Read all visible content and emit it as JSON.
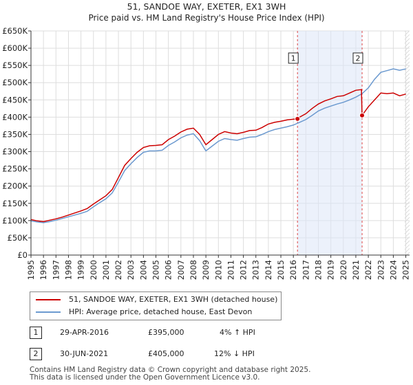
{
  "chart_data": {
    "type": "line",
    "title": "51, SANDOE WAY, EXETER, EX1 3WH",
    "subtitle": "Price paid vs. HM Land Registry's House Price Index (HPI)",
    "xlim": [
      1995,
      2025.3
    ],
    "ylim": [
      0,
      650000
    ],
    "xticks": [
      1995,
      1996,
      1997,
      1998,
      1999,
      2000,
      2001,
      2002,
      2003,
      2004,
      2005,
      2006,
      2007,
      2008,
      2009,
      2010,
      2011,
      2012,
      2013,
      2014,
      2015,
      2016,
      2017,
      2018,
      2019,
      2020,
      2021,
      2022,
      2023,
      2024,
      2025
    ],
    "yticks": [
      0,
      50000,
      100000,
      150000,
      200000,
      250000,
      300000,
      350000,
      400000,
      450000,
      500000,
      550000,
      600000,
      650000
    ],
    "ytick_labels": [
      "£0",
      "£50K",
      "£100K",
      "£150K",
      "£200K",
      "£250K",
      "£300K",
      "£350K",
      "£400K",
      "£450K",
      "£500K",
      "£550K",
      "£600K",
      "£650K"
    ],
    "series": [
      {
        "name": "51, SANDOE WAY, EXETER, EX1 3WH (detached house)",
        "color": "#cc0000",
        "x": [
          1995.0,
          1995.5,
          1996.0,
          1996.5,
          1997.0,
          1997.5,
          1998.0,
          1998.5,
          1999.0,
          1999.5,
          2000.0,
          2000.5,
          2001.0,
          2001.5,
          2002.0,
          2002.5,
          2003.0,
          2003.5,
          2004.0,
          2004.5,
          2005.0,
          2005.5,
          2006.0,
          2006.5,
          2007.0,
          2007.5,
          2008.0,
          2008.5,
          2009.0,
          2009.5,
          2010.0,
          2010.5,
          2011.0,
          2011.5,
          2012.0,
          2012.5,
          2013.0,
          2013.5,
          2014.0,
          2014.5,
          2015.0,
          2015.5,
          2016.0,
          2016.33,
          2016.5,
          2017.0,
          2017.5,
          2018.0,
          2018.5,
          2019.0,
          2019.5,
          2020.0,
          2020.5,
          2021.0,
          2021.45,
          2021.5,
          2022.0,
          2022.5,
          2023.0,
          2023.5,
          2024.0,
          2024.5,
          2025.0
        ],
        "y": [
          103000,
          99000,
          97000,
          101000,
          105000,
          110000,
          116000,
          122000,
          128000,
          135000,
          148000,
          160000,
          172000,
          190000,
          225000,
          260000,
          280000,
          298000,
          312000,
          317000,
          318000,
          320000,
          335000,
          345000,
          357000,
          365000,
          368000,
          350000,
          320000,
          335000,
          350000,
          358000,
          354000,
          352000,
          356000,
          361000,
          362000,
          370000,
          380000,
          385000,
          388000,
          392000,
          394000,
          395000,
          400000,
          410000,
          425000,
          438000,
          447000,
          453000,
          460000,
          462000,
          470000,
          478000,
          480000,
          405000,
          430000,
          450000,
          470000,
          468000,
          470000,
          462000,
          467000
        ]
      },
      {
        "name": "HPI: Average price, detached house, East Devon",
        "color": "#6b99cf",
        "x": [
          1995.0,
          1995.5,
          1996.0,
          1996.5,
          1997.0,
          1997.5,
          1998.0,
          1998.5,
          1999.0,
          1999.5,
          2000.0,
          2000.5,
          2001.0,
          2001.5,
          2002.0,
          2002.5,
          2003.0,
          2003.5,
          2004.0,
          2004.5,
          2005.0,
          2005.5,
          2006.0,
          2006.5,
          2007.0,
          2007.5,
          2008.0,
          2008.5,
          2009.0,
          2009.5,
          2010.0,
          2010.5,
          2011.0,
          2011.5,
          2012.0,
          2012.5,
          2013.0,
          2013.5,
          2014.0,
          2014.5,
          2015.0,
          2015.5,
          2016.0,
          2016.5,
          2017.0,
          2017.5,
          2018.0,
          2018.5,
          2019.0,
          2019.5,
          2020.0,
          2020.5,
          2021.0,
          2021.5,
          2022.0,
          2022.5,
          2023.0,
          2023.5,
          2024.0,
          2024.5,
          2025.0
        ],
        "y": [
          99000,
          96000,
          94000,
          97000,
          101000,
          106000,
          111000,
          116000,
          121000,
          127000,
          140000,
          152000,
          163000,
          180000,
          212000,
          245000,
          265000,
          283000,
          298000,
          302000,
          302000,
          304000,
          318000,
          328000,
          340000,
          348000,
          352000,
          332000,
          302000,
          316000,
          330000,
          338000,
          335000,
          333000,
          338000,
          342000,
          343000,
          350000,
          358000,
          364000,
          368000,
          372000,
          377000,
          385000,
          393000,
          405000,
          418000,
          426000,
          432000,
          438000,
          443000,
          450000,
          458000,
          468000,
          485000,
          510000,
          530000,
          535000,
          540000,
          536000,
          540000
        ]
      }
    ],
    "markers": [
      {
        "label": "1",
        "x": 2016.33,
        "y": 395000
      },
      {
        "label": "2",
        "x": 2021.5,
        "y": 405000
      }
    ],
    "shaded_range": [
      2016.33,
      2021.5
    ],
    "hatched_after": 2024.9
  },
  "legend": {
    "items": [
      {
        "label": "51, SANDOE WAY, EXETER, EX1 3WH (detached house)",
        "color": "#cc0000"
      },
      {
        "label": "HPI: Average price, detached house, East Devon",
        "color": "#6b99cf"
      }
    ]
  },
  "transactions": [
    {
      "num": "1",
      "date": "29-APR-2016",
      "price": "£395,000",
      "hpi": "4% ↑ HPI"
    },
    {
      "num": "2",
      "date": "30-JUN-2021",
      "price": "£405,000",
      "hpi": "12% ↓ HPI"
    }
  ],
  "footer": {
    "line1": "Contains HM Land Registry data © Crown copyright and database right 2025.",
    "line2": "This data is licensed under the Open Government Licence v3.0."
  }
}
